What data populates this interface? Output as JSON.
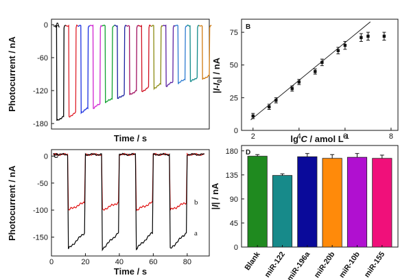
{
  "chart_data": [
    {
      "panel": "A",
      "type": "line",
      "xlabel": "Time / s",
      "ylabel": "Photocurrent / nA",
      "ylim": [
        -190,
        10
      ],
      "yticks": [
        0,
        -60,
        -120,
        -180
      ],
      "series": [
        {
          "color": "#000000",
          "on_value": -175
        },
        {
          "color": "#e0202a",
          "on_value": -168
        },
        {
          "color": "#1a2fe0",
          "on_value": -160
        },
        {
          "color": "#d020d0",
          "on_value": -152
        },
        {
          "color": "#10a030",
          "on_value": -142
        },
        {
          "color": "#1a20a0",
          "on_value": -135
        },
        {
          "color": "#a01060",
          "on_value": -128
        },
        {
          "color": "#d01020",
          "on_value": -122
        },
        {
          "color": "#8a8a10",
          "on_value": -116
        },
        {
          "color": "#5a20a0",
          "on_value": -112
        },
        {
          "color": "#2a7ad0",
          "on_value": -107
        },
        {
          "color": "#108a8a",
          "on_value": -104
        },
        {
          "color": "#d07a10",
          "on_value": -100
        }
      ]
    },
    {
      "panel": "B",
      "type": "scatter",
      "xlabel": "lg C / amol L",
      "xlabel_sup": "-1",
      "ylabel": "|I-I0| / nA",
      "xlim": [
        1.5,
        8.3
      ],
      "ylim": [
        0,
        85
      ],
      "xticks": [
        2,
        4,
        6,
        8
      ],
      "yticks": [
        0,
        25,
        50,
        75
      ],
      "points": [
        {
          "x": 2.0,
          "y": 11,
          "err": 2
        },
        {
          "x": 2.7,
          "y": 18,
          "err": 2
        },
        {
          "x": 3.0,
          "y": 23,
          "err": 2
        },
        {
          "x": 3.7,
          "y": 32,
          "err": 2
        },
        {
          "x": 4.0,
          "y": 37,
          "err": 2
        },
        {
          "x": 4.7,
          "y": 45,
          "err": 2
        },
        {
          "x": 5.0,
          "y": 52,
          "err": 2.5
        },
        {
          "x": 5.7,
          "y": 61,
          "err": 2.5
        },
        {
          "x": 6.0,
          "y": 65,
          "err": 3
        },
        {
          "x": 6.7,
          "y": 71,
          "err": 3
        },
        {
          "x": 7.0,
          "y": 72,
          "err": 3
        },
        {
          "x": 7.7,
          "y": 72,
          "err": 3
        }
      ],
      "fit": {
        "x": [
          1.9,
          7.1
        ],
        "y": [
          8,
          83
        ]
      }
    },
    {
      "panel": "C",
      "type": "line",
      "xlabel": "Time / s",
      "ylabel": "Photocurrent / nA",
      "xlim": [
        0,
        93
      ],
      "ylim": [
        -185,
        12
      ],
      "xticks": [
        0,
        20,
        40,
        60,
        80
      ],
      "yticks": [
        0,
        -50,
        -100,
        -150
      ],
      "light_on_windows": [
        [
          10,
          20
        ],
        [
          30,
          40
        ],
        [
          50,
          60
        ],
        [
          70,
          80
        ]
      ],
      "series": [
        {
          "name": "a",
          "color": "#000000",
          "on_start": -172,
          "on_end": -140
        },
        {
          "name": "b",
          "color": "#e01010",
          "on_start": -100,
          "on_end": -85
        }
      ]
    },
    {
      "panel": "D",
      "type": "bar",
      "ylabel": "|I| / nA",
      "ylim": [
        0,
        190
      ],
      "yticks": [
        0,
        45,
        90,
        135,
        180
      ],
      "categories": [
        "Blank",
        "miR-122",
        "miR-196a",
        "miR-20b",
        "miR-10b",
        "miR-155"
      ],
      "values": [
        170,
        134,
        169,
        166,
        168,
        166
      ],
      "errors": [
        3,
        3,
        6,
        7,
        7,
        6
      ],
      "colors": [
        "#1f8a1f",
        "#178a8a",
        "#0a0a9a",
        "#ff8a0a",
        "#b010d0",
        "#f0107a"
      ]
    }
  ]
}
